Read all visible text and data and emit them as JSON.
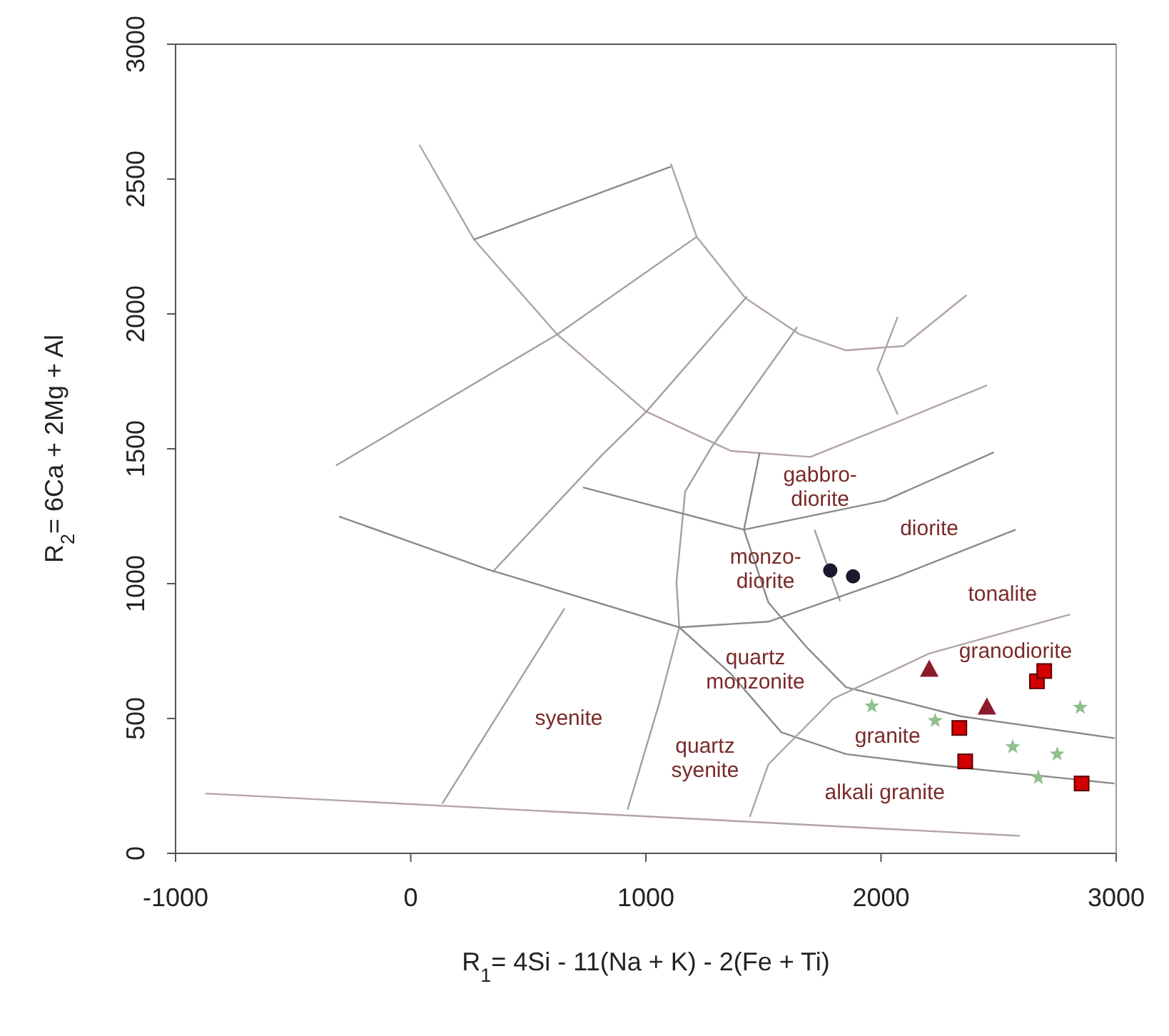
{
  "chart_data": {
    "type": "scatter",
    "xlabel": "R$_{1}$= 4Si - 11(Na + K) - 2(Fe + Ti)",
    "ylabel": "R$_{2}$= 6Ca + 2Mg + Al",
    "xlim": [
      -1000,
      3000
    ],
    "xticks": [
      -1000,
      0,
      1000,
      2000,
      3000
    ],
    "ylim": [
      0,
      3000
    ],
    "yticks": [
      0,
      500,
      1000,
      1500,
      2000,
      2500,
      3000
    ],
    "series": [
      {
        "type": "line",
        "color": "#b3a3a8",
        "x": [
          37,
          269,
          623,
          1002,
          1362,
          1700,
          2071,
          2450
        ],
        "values": [
          2627,
          2276,
          1924,
          1638,
          1492,
          1470,
          1600,
          1735
        ]
      },
      {
        "type": "line",
        "color": "#b3a3a8",
        "x": [
          1106,
          1216,
          1423,
          1655,
          1851,
          2095,
          2364
        ],
        "values": [
          2557,
          2286,
          2059,
          1924,
          1865,
          1881,
          2070
        ]
      },
      {
        "type": "line",
        "color": "#8a8a8a",
        "x": [
          269,
          1106
        ],
        "values": [
          2276,
          2546
        ]
      },
      {
        "type": "line",
        "color": "#a0a0a0",
        "x": [
          -318,
          623,
          1216
        ],
        "values": [
          1438,
          1924,
          2286
        ]
      },
      {
        "type": "line",
        "color": "#a0a0a0",
        "x": [
          348,
          812,
          1002,
          1430
        ],
        "values": [
          1043,
          1476,
          1638,
          2065
        ]
      },
      {
        "type": "line",
        "color": "#a0a0a0",
        "x": [
          1643,
          1277,
          1167,
          1130,
          1142,
          1057,
          922
        ],
        "values": [
          1951,
          1503,
          1341,
          1005,
          838,
          557,
          162
        ]
      },
      {
        "type": "line",
        "color": "#8a8a8a",
        "x": [
          1484,
          1417,
          1521,
          1686,
          1851,
          2340,
          2993
        ],
        "values": [
          1487,
          1200,
          930,
          762,
          616,
          508,
          427
        ]
      },
      {
        "type": "line",
        "color": "#a0a0a0",
        "x": [
          1717,
          1826
        ],
        "values": [
          1200,
          935
        ]
      },
      {
        "type": "line",
        "color": "#b3a3a8",
        "x": [
          2071,
          1985,
          2071
        ],
        "values": [
          1989,
          1795,
          1627
        ]
      },
      {
        "type": "line",
        "color": "#8a8a8a",
        "x": [
          733,
          1417,
          2016,
          2480
        ],
        "values": [
          1357,
          1200,
          1308,
          1487
        ]
      },
      {
        "type": "line",
        "color": "#8a8a8a",
        "x": [
          -305,
          324,
          1142,
          1521,
          2071,
          2572
        ],
        "values": [
          1249,
          1054,
          838,
          859,
          1027,
          1200
        ]
      },
      {
        "type": "line",
        "color": "#8a8a8a",
        "x": [
          1142,
          1362,
          1576,
          1851,
          2205,
          2993
        ],
        "values": [
          838,
          665,
          449,
          368,
          330,
          259
        ]
      },
      {
        "type": "line",
        "color": "#b3a3a8",
        "x": [
          1442,
          1521,
          1796,
          2205,
          2804
        ],
        "values": [
          135,
          330,
          573,
          741,
          886
        ]
      },
      {
        "type": "line",
        "color": "#a0a0a0",
        "x": [
          654,
          134
        ],
        "values": [
          908,
          184
        ]
      },
      {
        "type": "line",
        "color": "#b3a3a8",
        "x": [
          -874,
          2590
        ],
        "values": [
          222,
          65
        ]
      },
      {
        "marker": "star",
        "color": "#8fbf8f",
        "x": [
          1961,
          2230,
          2560,
          2749,
          2847,
          2669
        ],
        "values": [
          546,
          492,
          395,
          368,
          541,
          281
        ]
      },
      {
        "marker": "circle",
        "color": "#1a1a2e",
        "x": [
          1784,
          1881
        ],
        "values": [
          1049,
          1027
        ]
      },
      {
        "marker": "triangle",
        "color": "#8b1a2b",
        "x": [
          2205,
          2450
        ],
        "values": [
          681,
          541
        ]
      },
      {
        "marker": "square",
        "color": "#d40000",
        "x": [
          2333,
          2358,
          2663,
          2694,
          2853
        ],
        "values": [
          465,
          341,
          638,
          676,
          259
        ]
      }
    ],
    "annotations": [
      "gabbro-\ndiorite",
      "diorite",
      "monzo-\ndiorite",
      "tonalite",
      "granodiorite",
      "quartz\nmonzonite",
      "syenite",
      "quartz\nsyenite",
      "granite",
      "alkali granite"
    ]
  }
}
